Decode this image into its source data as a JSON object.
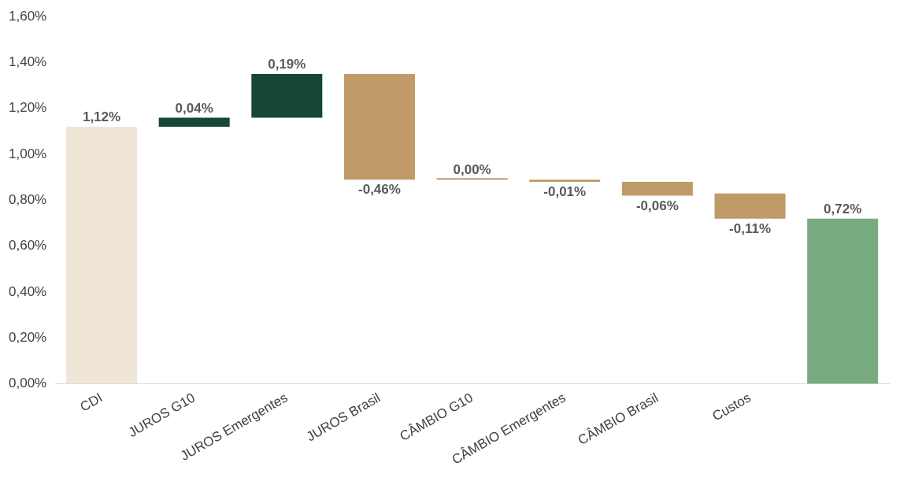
{
  "chart_data": {
    "type": "bar",
    "categories": [
      "CDI",
      "JUROS G10",
      "JUROS Emergentes",
      "JUROS Brasil",
      "CÂMBIO G10",
      "CÂMBIO Emergentes",
      "CÂMBIO Brasil",
      "Custos",
      null
    ],
    "values": [
      1.12,
      0.04,
      0.19,
      -0.46,
      0,
      -0.01,
      -0.06,
      -0.11,
      0.72
    ],
    "base": [
      0,
      1.12,
      1.16,
      1.35,
      0.89,
      0.89,
      0.88,
      0.83,
      0
    ],
    "colors": [
      "#f0e6d8",
      "#154734",
      "#154734",
      "#c09a68",
      "#c09a68",
      "#c09a68",
      "#c09a68",
      "#c09a68",
      "#78ab80"
    ],
    "value_labels": [
      "1,12%",
      "0,04%",
      "0,19%",
      "-0,46%",
      "0,00%",
      "-0,01%",
      "-0,06%",
      "-0,11%",
      "0,72%"
    ],
    "ylim": [
      0,
      1.6
    ],
    "yticks": [
      {
        "value": 0,
        "label": "0,00%"
      },
      {
        "value": 0.2,
        "label": "0,20%"
      },
      {
        "value": 0.4,
        "label": "0,40%"
      },
      {
        "value": 0.6,
        "label": "0,60%"
      },
      {
        "value": 0.8,
        "label": "0,80%"
      },
      {
        "value": 1,
        "label": "1,00%"
      },
      {
        "value": 1.2,
        "label": "1,20%"
      },
      {
        "value": 1.4,
        "label": "1,40%"
      },
      {
        "value": 1.6,
        "label": "1,60%"
      }
    ],
    "grid": false,
    "legend": false
  }
}
